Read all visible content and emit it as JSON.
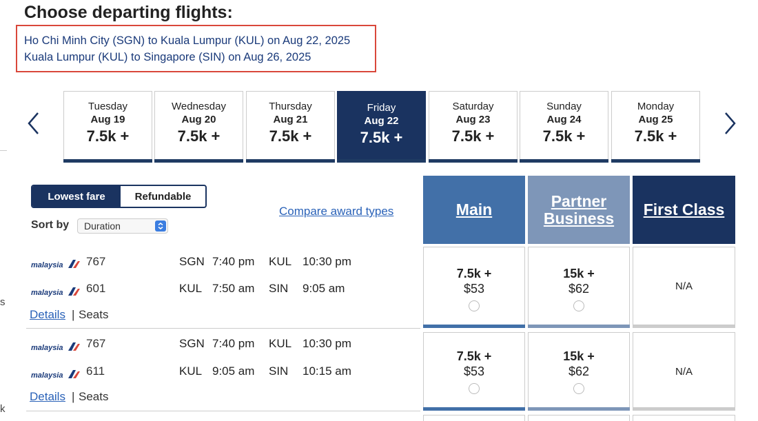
{
  "page": {
    "title": "Choose departing flights:",
    "itinerary": [
      "Ho Chi Minh City (SGN) to Kuala Lumpur (KUL) on Aug 22, 2025",
      "Kuala Lumpur (KUL) to Singapore (SIN) on Aug 26, 2025"
    ]
  },
  "left_edge": {
    "frag1": "s",
    "frag2": "k"
  },
  "date_nav": {
    "prev_icon": "chevron-left-icon",
    "next_icon": "chevron-right-icon",
    "selected": "Aug 22",
    "dates": [
      {
        "day": "Tuesday",
        "date": "Aug 19",
        "points": "7.5k +"
      },
      {
        "day": "Wednesday",
        "date": "Aug 20",
        "points": "7.5k +"
      },
      {
        "day": "Thursday",
        "date": "Aug 21",
        "points": "7.5k +"
      },
      {
        "day": "Friday",
        "date": "Aug 22",
        "points": "7.5k +"
      },
      {
        "day": "Saturday",
        "date": "Aug 23",
        "points": "7.5k +"
      },
      {
        "day": "Sunday",
        "date": "Aug 24",
        "points": "7.5k +"
      },
      {
        "day": "Monday",
        "date": "Aug 25",
        "points": "7.5k +"
      }
    ]
  },
  "fare_toggle": {
    "lowest": "Lowest fare",
    "refundable": "Refundable",
    "active": "Lowest fare"
  },
  "sort": {
    "label": "Sort by",
    "value": "Duration"
  },
  "compare_link": "Compare award types",
  "cabins": {
    "main": "Main",
    "partner": "Partner Business",
    "first": "First Class"
  },
  "colors": {
    "navy": "#1a3360",
    "main": "#4270a8",
    "partner": "#7e96b8",
    "link": "#2a62b8",
    "highlight": "#d9473a"
  },
  "flights": [
    {
      "segments": [
        {
          "airline": "malaysia",
          "flight": "767",
          "from": "SGN",
          "dep": "7:40 pm",
          "to": "KUL",
          "arr": "10:30 pm"
        },
        {
          "airline": "malaysia",
          "flight": "601",
          "from": "KUL",
          "dep": "7:50 am",
          "to": "SIN",
          "arr": "9:05 am"
        }
      ],
      "details": "Details",
      "sep": "|",
      "seats": "Seats",
      "fares": {
        "main": {
          "points": "7.5k +",
          "usd": "$53"
        },
        "partner": {
          "points": "15k +",
          "usd": "$62"
        },
        "first": "N/A"
      }
    },
    {
      "segments": [
        {
          "airline": "malaysia",
          "flight": "767",
          "from": "SGN",
          "dep": "7:40 pm",
          "to": "KUL",
          "arr": "10:30 pm"
        },
        {
          "airline": "malaysia",
          "flight": "611",
          "from": "KUL",
          "dep": "9:05 am",
          "to": "SIN",
          "arr": "10:15 am"
        }
      ],
      "details": "Details",
      "sep": "|",
      "seats": "Seats",
      "fares": {
        "main": {
          "points": "7.5k +",
          "usd": "$53"
        },
        "partner": {
          "points": "15k +",
          "usd": "$62"
        },
        "first": "N/A"
      }
    }
  ]
}
